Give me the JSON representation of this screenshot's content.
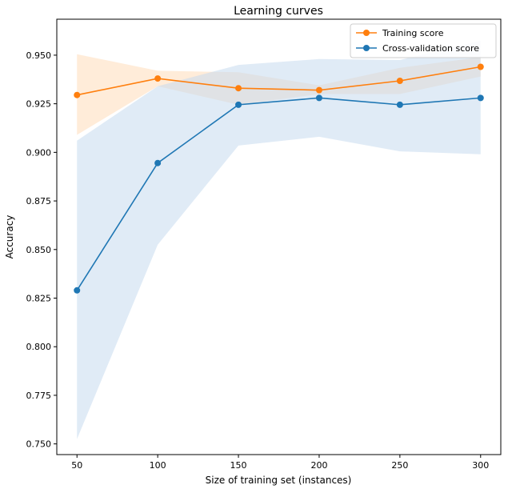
{
  "chart_data": {
    "type": "line",
    "title": "Learning curves",
    "xlabel": "Size of training set (instances)",
    "ylabel": "Accuracy",
    "x": [
      50,
      100,
      150,
      200,
      250,
      300
    ],
    "xlim": [
      37.5,
      312.5
    ],
    "ylim": [
      0.7445,
      0.9685
    ],
    "xticks": [
      "50",
      "100",
      "150",
      "200",
      "250",
      "300"
    ],
    "xtick_values": [
      50,
      100,
      150,
      200,
      250,
      300
    ],
    "yticks": [
      "0.750",
      "0.775",
      "0.800",
      "0.825",
      "0.850",
      "0.875",
      "0.900",
      "0.925",
      "0.950"
    ],
    "ytick_values": [
      0.75,
      0.775,
      0.8,
      0.825,
      0.85,
      0.875,
      0.9,
      0.925,
      0.95
    ],
    "grid": false,
    "legend_position": "top-right",
    "series": [
      {
        "name": "Training score",
        "color": "#ff7f0e",
        "band_color": "#ffdcb9",
        "values": [
          0.9295,
          0.938,
          0.933,
          0.932,
          0.9368,
          0.944
        ],
        "lower": [
          0.909,
          0.934,
          0.9245,
          0.93,
          0.93,
          0.939
        ],
        "upper": [
          0.9505,
          0.942,
          0.9412,
          0.9345,
          0.9435,
          0.949
        ]
      },
      {
        "name": "Cross-validation score",
        "color": "#1f77b4",
        "band_color": "#c6dbef",
        "values": [
          0.829,
          0.8945,
          0.9245,
          0.928,
          0.9245,
          0.928
        ],
        "lower": [
          0.7525,
          0.8525,
          0.9035,
          0.908,
          0.9005,
          0.899
        ],
        "upper": [
          0.906,
          0.934,
          0.945,
          0.948,
          0.9475,
          0.9575
        ]
      }
    ]
  }
}
